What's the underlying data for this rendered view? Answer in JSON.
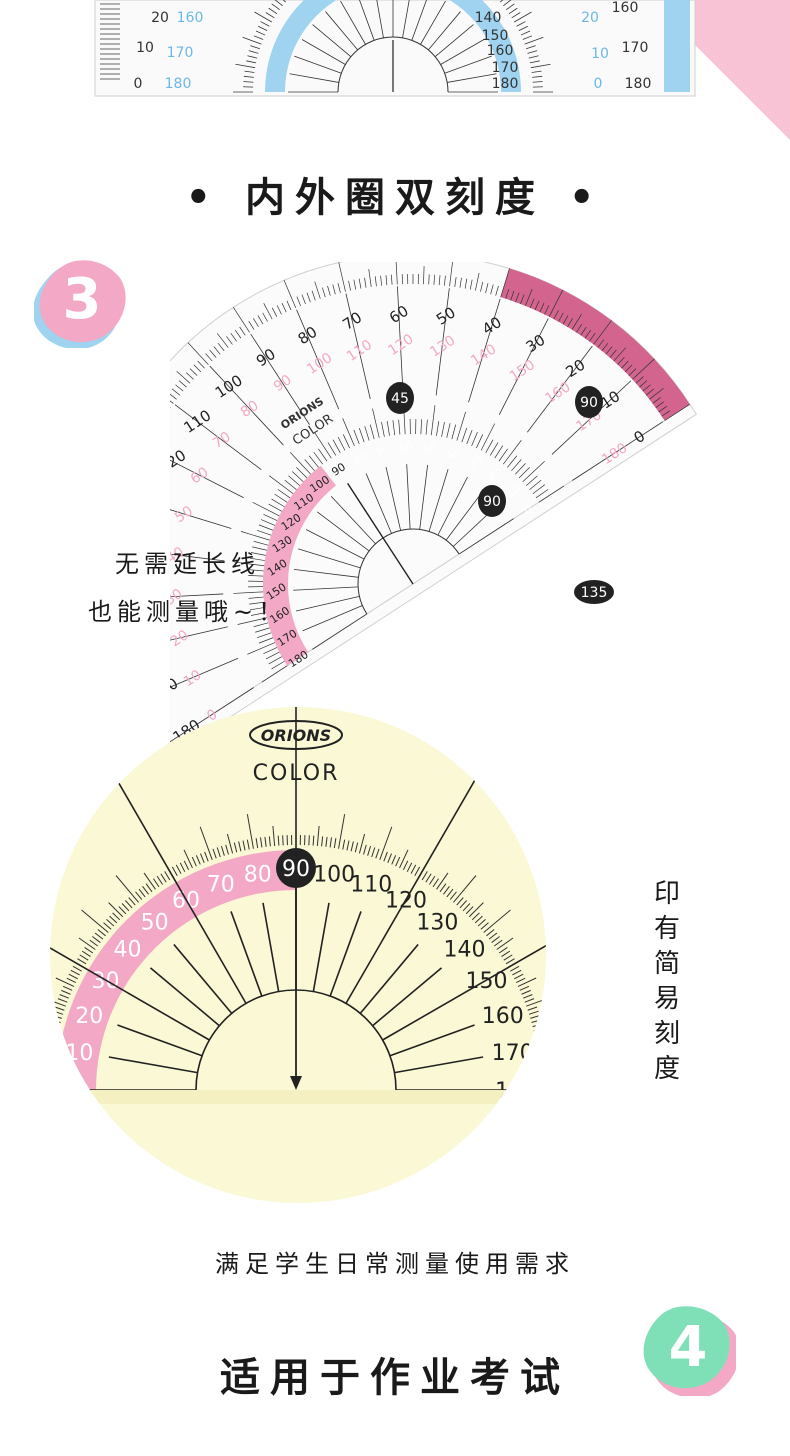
{
  "heading_dual_scale": "• 内外圈双刻度 •",
  "badge_three": "3",
  "badge_four": "4",
  "caption_no_extension_line1": "无需延长线",
  "caption_no_extension_line2": "也能测量哦~！",
  "caption_simple_scale": [
    "印",
    "有",
    "简",
    "易",
    "刻",
    "度"
  ],
  "caption_daily_use": "满足学生日常测量使用需求",
  "heading_usage": "适用于作业考试",
  "brand_logo": "ORIONS",
  "brand_color": "COLOR",
  "angle_badges": [
    "45",
    "90",
    "135"
  ],
  "zoom_marker": "90",
  "outer_scale_labels": [
    "0",
    "10",
    "20",
    "30",
    "40",
    "50",
    "60",
    "70",
    "80",
    "90",
    "100",
    "110",
    "120",
    "130",
    "140",
    "150",
    "160",
    "170",
    "180"
  ],
  "colors": {
    "pink": "#f3a9c5",
    "deep_pink": "#d2648e",
    "blue": "#9fd3f0",
    "yellow": "#fbf8d5",
    "mint": "#7fe0b8",
    "corner": "#f9c3d6"
  }
}
